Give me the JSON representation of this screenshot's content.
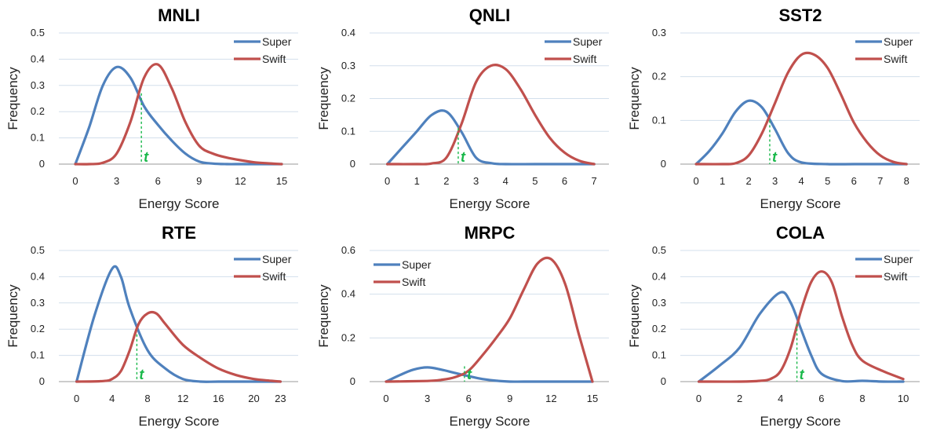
{
  "chart_data": [
    {
      "type": "line",
      "title": "MNLI",
      "xlabel": "Energy Score",
      "ylabel": "Frequency",
      "xticks": [
        0,
        3,
        6,
        9,
        12,
        15
      ],
      "yticks": [
        0,
        0.1,
        0.2,
        0.3,
        0.4,
        0.5
      ],
      "xlim": [
        -1.2,
        16.2
      ],
      "ylim": [
        0,
        0.5
      ],
      "legend_position": "top-right",
      "threshold": {
        "label": "t",
        "x": 4.8,
        "y": 0.27
      },
      "series": [
        {
          "name": "Super",
          "color": "#4f81bd",
          "x": [
            0,
            1,
            2,
            3,
            4,
            5,
            6,
            7,
            8,
            9,
            10,
            11,
            12,
            13,
            14,
            15
          ],
          "values": [
            0,
            0.14,
            0.3,
            0.37,
            0.33,
            0.22,
            0.15,
            0.09,
            0.04,
            0.01,
            0.002,
            0,
            0,
            0,
            0,
            0
          ]
        },
        {
          "name": "Swift",
          "color": "#c0504d",
          "x": [
            0,
            1,
            2,
            3,
            4,
            5,
            6,
            7,
            8,
            9,
            10,
            11,
            12,
            13,
            14,
            15
          ],
          "values": [
            0,
            0,
            0.005,
            0.04,
            0.16,
            0.33,
            0.38,
            0.29,
            0.16,
            0.07,
            0.04,
            0.025,
            0.015,
            0.007,
            0.003,
            0
          ]
        }
      ]
    },
    {
      "type": "line",
      "title": "QNLI",
      "xlabel": "Energy Score",
      "ylabel": "Frequency",
      "xticks": [
        0,
        1,
        2,
        3,
        4,
        5,
        6,
        7
      ],
      "yticks": [
        0,
        0.1,
        0.2,
        0.3,
        0.4
      ],
      "xlim": [
        -0.6,
        7.5
      ],
      "ylim": [
        0,
        0.4
      ],
      "legend_position": "top-right",
      "threshold": {
        "label": "t",
        "x": 2.4,
        "y": 0.11
      },
      "series": [
        {
          "name": "Super",
          "color": "#4f81bd",
          "x": [
            0,
            0.5,
            1,
            1.5,
            2,
            2.5,
            3,
            3.5,
            4,
            5,
            6,
            7
          ],
          "values": [
            0,
            0.05,
            0.1,
            0.15,
            0.16,
            0.1,
            0.02,
            0.003,
            0,
            0,
            0,
            0
          ]
        },
        {
          "name": "Swift",
          "color": "#c0504d",
          "x": [
            0,
            1,
            1.5,
            2,
            2.5,
            3,
            3.5,
            4,
            4.5,
            5,
            5.5,
            6,
            6.5,
            7
          ],
          "values": [
            0,
            0,
            0.002,
            0.02,
            0.12,
            0.25,
            0.3,
            0.29,
            0.23,
            0.15,
            0.08,
            0.035,
            0.01,
            0
          ]
        }
      ]
    },
    {
      "type": "line",
      "title": "SST2",
      "xlabel": "Energy Score",
      "ylabel": "Frequency",
      "xticks": [
        0,
        1,
        2,
        3,
        4,
        5,
        6,
        7,
        8
      ],
      "yticks": [
        0,
        0.1,
        0.2,
        0.3
      ],
      "xlim": [
        -0.6,
        8.5
      ],
      "ylim": [
        0,
        0.3
      ],
      "legend_position": "top-right",
      "threshold": {
        "label": "t",
        "x": 2.8,
        "y": 0.1
      },
      "series": [
        {
          "name": "Super",
          "color": "#4f81bd",
          "x": [
            0,
            0.5,
            1,
            1.5,
            2,
            2.5,
            3,
            3.5,
            4,
            5,
            6,
            7,
            8
          ],
          "values": [
            0,
            0.03,
            0.07,
            0.12,
            0.145,
            0.13,
            0.08,
            0.025,
            0.004,
            0,
            0,
            0,
            0
          ]
        },
        {
          "name": "Swift",
          "color": "#c0504d",
          "x": [
            0,
            1,
            1.5,
            2,
            2.5,
            3,
            3.5,
            4,
            4.5,
            5,
            5.5,
            6,
            6.5,
            7,
            7.5,
            8
          ],
          "values": [
            0,
            0,
            0.002,
            0.02,
            0.07,
            0.14,
            0.21,
            0.25,
            0.25,
            0.22,
            0.16,
            0.095,
            0.05,
            0.02,
            0.005,
            0
          ]
        }
      ]
    },
    {
      "type": "line",
      "title": "RTE",
      "xlabel": "Energy Score",
      "ylabel": "Frequency",
      "xticks": [
        0,
        4,
        8,
        12,
        16,
        20,
        23
      ],
      "yticks": [
        0,
        0.1,
        0.2,
        0.3,
        0.4,
        0.5
      ],
      "xlim": [
        -2,
        25
      ],
      "ylim": [
        0,
        0.5
      ],
      "legend_position": "top-right",
      "threshold": {
        "label": "t",
        "x": 6.8,
        "y": 0.18
      },
      "series": [
        {
          "name": "Super",
          "color": "#4f81bd",
          "x": [
            0,
            2,
            4,
            5,
            6,
            8,
            10,
            12,
            14,
            16,
            20,
            23
          ],
          "values": [
            0,
            0.25,
            0.43,
            0.4,
            0.28,
            0.12,
            0.05,
            0.01,
            0,
            0,
            0,
            0
          ]
        },
        {
          "name": "Swift",
          "color": "#c0504d",
          "x": [
            0,
            3,
            4,
            5,
            6,
            7,
            8,
            9,
            10,
            12,
            14,
            16,
            18,
            20,
            22,
            23
          ],
          "values": [
            0,
            0.002,
            0.01,
            0.04,
            0.12,
            0.22,
            0.26,
            0.26,
            0.22,
            0.14,
            0.09,
            0.05,
            0.025,
            0.01,
            0.003,
            0
          ]
        }
      ]
    },
    {
      "type": "line",
      "title": "MRPC",
      "xlabel": "Energy Score",
      "ylabel": "Frequency",
      "xticks": [
        0,
        3,
        6,
        9,
        12,
        15
      ],
      "yticks": [
        0,
        0.2,
        0.4,
        0.6
      ],
      "xlim": [
        -1.2,
        16.2
      ],
      "ylim": [
        0,
        0.6
      ],
      "legend_position": "top-left",
      "threshold": {
        "label": "t",
        "x": 5.7,
        "y": 0.07
      },
      "series": [
        {
          "name": "Super",
          "color": "#4f81bd",
          "x": [
            0,
            1,
            2,
            3,
            4,
            5,
            6,
            7,
            8,
            9,
            10,
            12,
            15
          ],
          "values": [
            0,
            0.03,
            0.055,
            0.065,
            0.055,
            0.04,
            0.025,
            0.012,
            0.004,
            0,
            0,
            0,
            0
          ]
        },
        {
          "name": "Swift",
          "color": "#c0504d",
          "x": [
            0,
            3,
            4,
            5,
            6,
            7,
            8,
            9,
            10,
            11,
            12,
            13,
            14,
            15
          ],
          "values": [
            0,
            0.003,
            0.008,
            0.02,
            0.05,
            0.12,
            0.2,
            0.29,
            0.42,
            0.54,
            0.56,
            0.45,
            0.22,
            0
          ]
        }
      ]
    },
    {
      "type": "line",
      "title": "COLA",
      "xlabel": "Energy Score",
      "ylabel": "Frequency",
      "xticks": [
        0,
        2,
        4,
        6,
        8,
        10
      ],
      "yticks": [
        0,
        0.1,
        0.2,
        0.3,
        0.4,
        0.5
      ],
      "xlim": [
        -0.9,
        10.8
      ],
      "ylim": [
        0,
        0.5
      ],
      "legend_position": "top-right",
      "threshold": {
        "label": "t",
        "x": 4.8,
        "y": 0.22
      },
      "series": [
        {
          "name": "Super",
          "color": "#4f81bd",
          "x": [
            0,
            1,
            2,
            3,
            4,
            4.5,
            5,
            5.5,
            6,
            7,
            8,
            9,
            10
          ],
          "values": [
            0,
            0.06,
            0.13,
            0.26,
            0.34,
            0.3,
            0.2,
            0.1,
            0.03,
            0.002,
            0.003,
            0,
            0
          ]
        },
        {
          "name": "Swift",
          "color": "#c0504d",
          "x": [
            0,
            2,
            3,
            3.5,
            4,
            4.5,
            5,
            5.5,
            6,
            6.5,
            7,
            7.5,
            8,
            9,
            10
          ],
          "values": [
            0,
            0,
            0.003,
            0.01,
            0.04,
            0.13,
            0.27,
            0.38,
            0.42,
            0.38,
            0.25,
            0.14,
            0.08,
            0.04,
            0.01
          ]
        }
      ]
    }
  ]
}
